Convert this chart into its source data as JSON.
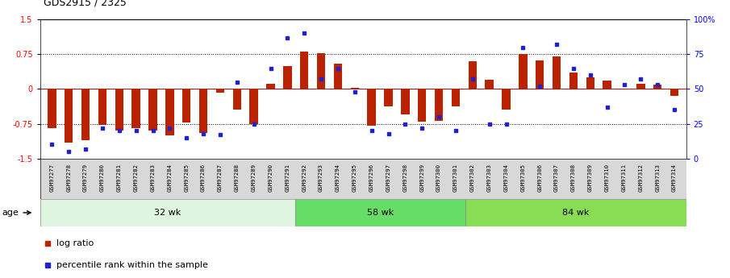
{
  "title": "GDS2915 / 2325",
  "samples": [
    "GSM97277",
    "GSM97278",
    "GSM97279",
    "GSM97280",
    "GSM97281",
    "GSM97282",
    "GSM97283",
    "GSM97284",
    "GSM97285",
    "GSM97286",
    "GSM97287",
    "GSM97288",
    "GSM97289",
    "GSM97290",
    "GSM97291",
    "GSM97292",
    "GSM97293",
    "GSM97294",
    "GSM97295",
    "GSM97296",
    "GSM97297",
    "GSM97298",
    "GSM97299",
    "GSM97300",
    "GSM97301",
    "GSM97302",
    "GSM97303",
    "GSM97304",
    "GSM97305",
    "GSM97306",
    "GSM97307",
    "GSM97308",
    "GSM97309",
    "GSM97310",
    "GSM97311",
    "GSM97312",
    "GSM97313",
    "GSM97314"
  ],
  "log_ratio": [
    -0.85,
    -1.15,
    -1.1,
    -0.78,
    -0.9,
    -0.85,
    -0.9,
    -1.0,
    -0.72,
    -0.95,
    -0.08,
    -0.45,
    -0.75,
    0.12,
    0.5,
    0.8,
    0.78,
    0.55,
    0.02,
    -0.8,
    -0.38,
    -0.55,
    -0.7,
    -0.68,
    -0.38,
    0.6,
    0.2,
    -0.45,
    0.75,
    0.62,
    0.7,
    0.35,
    0.25,
    0.18,
    0.0,
    0.12,
    0.1,
    -0.15
  ],
  "percentile": [
    10,
    5,
    7,
    22,
    20,
    20,
    20,
    22,
    15,
    18,
    17,
    55,
    25,
    65,
    87,
    90,
    57,
    65,
    48,
    20,
    18,
    25,
    22,
    30,
    20,
    57,
    25,
    25,
    80,
    52,
    82,
    65,
    60,
    37,
    53,
    57,
    53,
    35
  ],
  "groups": [
    {
      "label": "32 wk",
      "start": 0,
      "end": 15,
      "color": "#dff5df"
    },
    {
      "label": "58 wk",
      "start": 15,
      "end": 25,
      "color": "#66dd66"
    },
    {
      "label": "84 wk",
      "start": 25,
      "end": 38,
      "color": "#88dd55"
    }
  ],
  "ylim": [
    -1.5,
    1.5
  ],
  "yticks_left": [
    -1.5,
    -0.75,
    0,
    0.75,
    1.5
  ],
  "yticks_right": [
    0,
    25,
    50,
    75,
    100
  ],
  "ytick_right_labels": [
    "0",
    "25",
    "50",
    "75",
    "100%"
  ],
  "bar_color": "#bb2200",
  "dot_color": "#2222cc",
  "hline_color": "#cc0000",
  "dotline_levels": [
    0.75,
    -0.75
  ],
  "background_color": "#ffffff",
  "xtick_bg": "#d8d8d8",
  "legend_items": [
    "log ratio",
    "percentile rank within the sample"
  ],
  "age_label": "age"
}
